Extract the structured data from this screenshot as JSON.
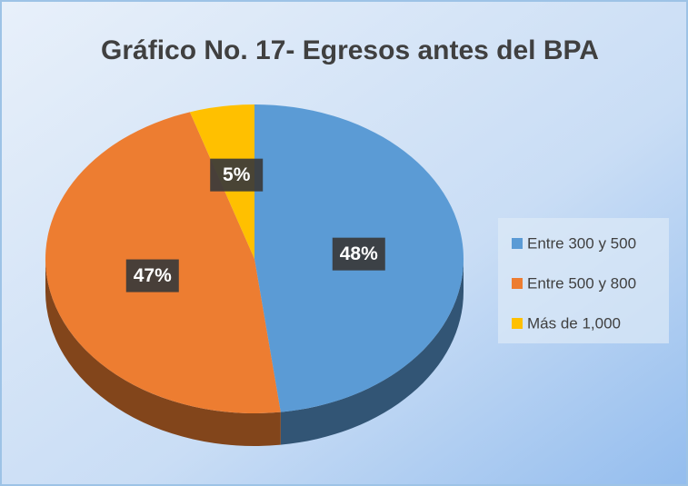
{
  "chart_data": {
    "type": "pie",
    "title": "Gráfico No. 17- Egresos antes del BPA",
    "categories": [
      "Entre 300 y 500",
      "Entre 500 y 800",
      "Más de 1,000"
    ],
    "values": [
      48,
      47,
      5
    ],
    "value_labels": [
      "48%",
      "47%",
      "5%"
    ],
    "colors": [
      "#5b9bd5",
      "#ed7d31",
      "#ffc000"
    ],
    "legend": "right"
  }
}
